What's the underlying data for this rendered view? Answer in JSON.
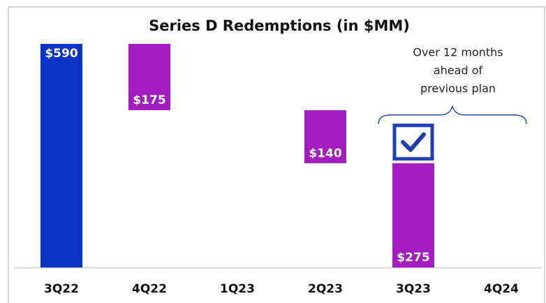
{
  "chart_data": {
    "type": "waterfall",
    "title": "Series D Redemptions (in $MM)",
    "categories": [
      "3Q22",
      "4Q22",
      "1Q23",
      "2Q23",
      "3Q23",
      "4Q24"
    ],
    "values": [
      590,
      175,
      null,
      140,
      275,
      null
    ],
    "value_labels": [
      "$590",
      "$175",
      null,
      "$140",
      "$275",
      null
    ],
    "colors": [
      "#0a34c8",
      "#a21cc0",
      "#a21cc0",
      "#a21cc0",
      "#a21cc0",
      "#a21cc0"
    ],
    "annotation": [
      "Over 12 months",
      "ahead of",
      "previous plan"
    ]
  }
}
